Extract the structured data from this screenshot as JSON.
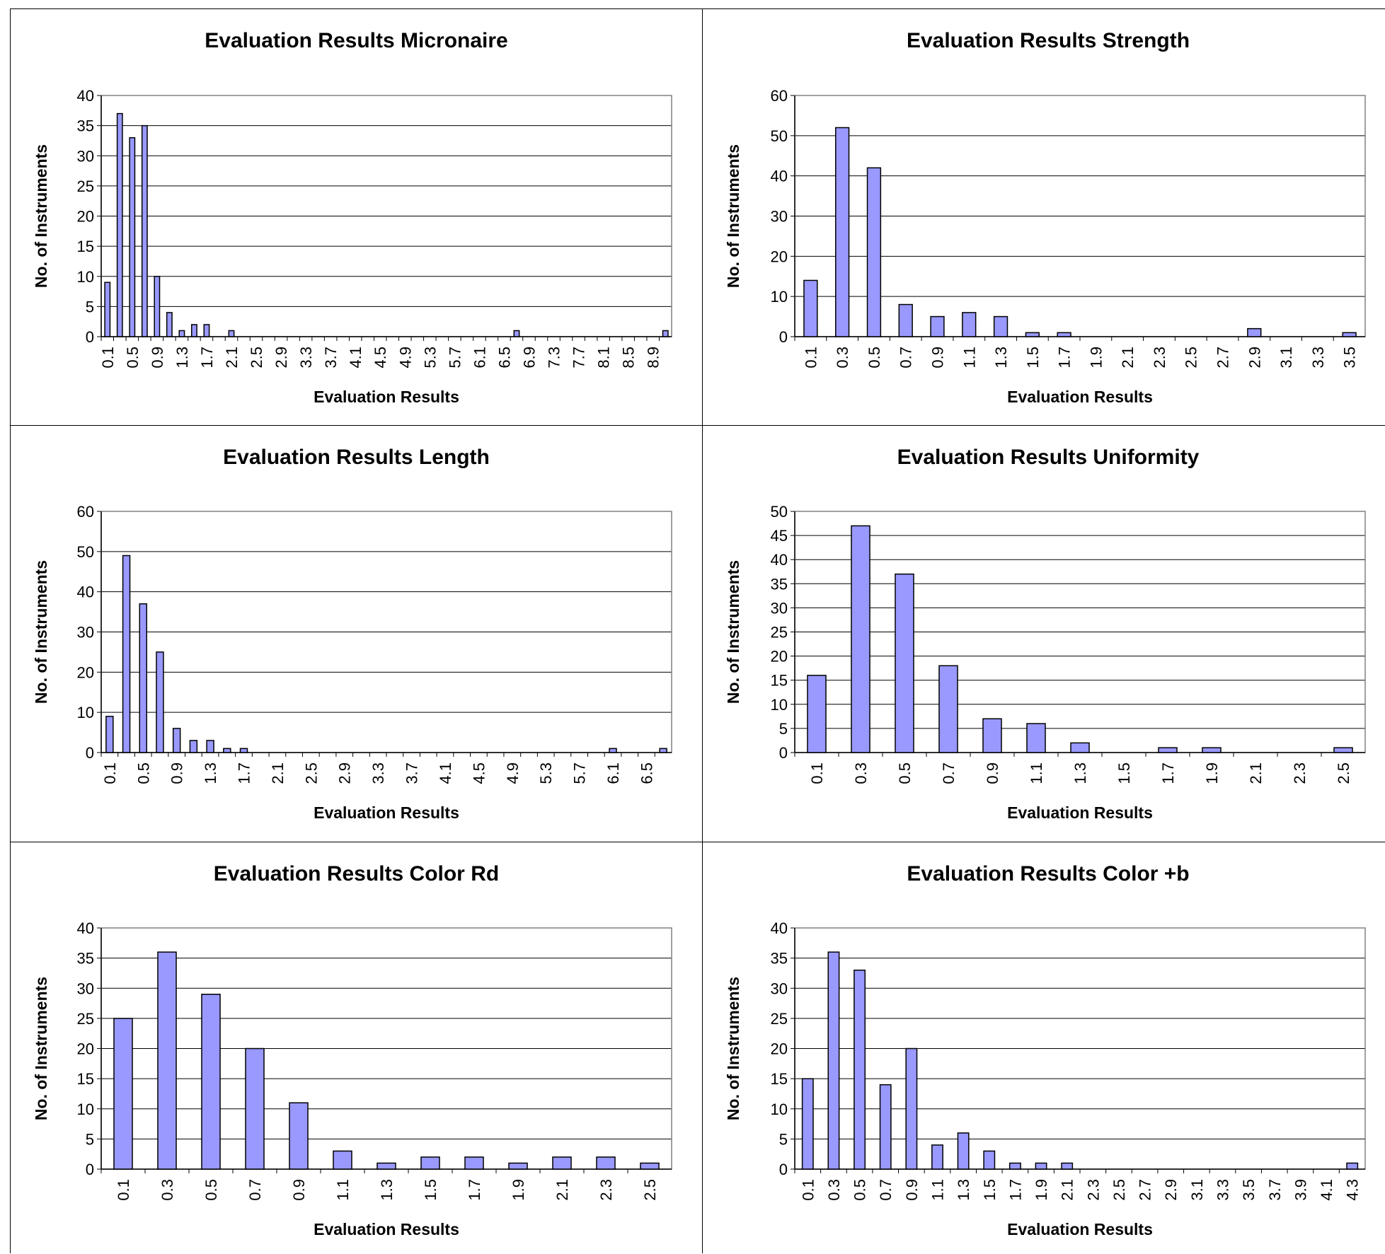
{
  "charts": [
    {
      "id": "micronaire",
      "title": "Evaluation Results Micronaire",
      "xlabel": "Evaluation Results",
      "ylabel": "No. of Instruments",
      "color": "#9999ff",
      "chart_data": {
        "type": "bar",
        "title": "Evaluation Results Micronaire",
        "xlabel": "Evaluation Results",
        "ylabel": "No. of Instruments",
        "ylim": [
          0,
          40
        ],
        "yticks": [
          0,
          5,
          10,
          15,
          20,
          25,
          30,
          35,
          40
        ],
        "x": [
          0.1,
          0.3,
          0.5,
          0.7,
          0.9,
          1.1,
          1.3,
          1.5,
          1.7,
          1.9,
          2.1,
          2.3,
          2.5,
          2.7,
          2.9,
          3.1,
          3.3,
          3.5,
          3.7,
          3.9,
          4.1,
          4.3,
          4.5,
          4.7,
          4.9,
          5.1,
          5.3,
          5.5,
          5.7,
          5.9,
          6.1,
          6.3,
          6.5,
          6.7,
          6.9,
          7.1,
          7.3,
          7.5,
          7.7,
          7.9,
          8.1,
          8.3,
          8.5,
          8.7,
          8.9,
          9.1
        ],
        "values": [
          9,
          37,
          33,
          35,
          10,
          4,
          1,
          2,
          2,
          0,
          1,
          0,
          0,
          0,
          0,
          0,
          0,
          0,
          0,
          0,
          0,
          0,
          0,
          0,
          0,
          0,
          0,
          0,
          0,
          0,
          0,
          0,
          0,
          1,
          0,
          0,
          0,
          0,
          0,
          0,
          0,
          0,
          0,
          0,
          0,
          1
        ],
        "tick_labels": [
          "0.1",
          "0.5",
          "0.9",
          "1.3",
          "1.7",
          "2.1",
          "2.5",
          "2.9",
          "3.3",
          "3.7",
          "4.1",
          "4.5",
          "4.9",
          "5.3",
          "5.7",
          "6.1",
          "6.5",
          "6.9",
          "7.3",
          "7.7",
          "8.1",
          "8.5",
          "8.9"
        ],
        "grid": true
      }
    },
    {
      "id": "strength",
      "title": "Evaluation Results Strength",
      "xlabel": "Evaluation Results",
      "ylabel": "No. of Instruments",
      "color": "#9999ff",
      "chart_data": {
        "type": "bar",
        "title": "Evaluation Results Strength",
        "xlabel": "Evaluation Results",
        "ylabel": "No. of Instruments",
        "ylim": [
          0,
          60
        ],
        "yticks": [
          0,
          10,
          20,
          30,
          40,
          50,
          60
        ],
        "x": [
          0.1,
          0.3,
          0.5,
          0.7,
          0.9,
          1.1,
          1.3,
          1.5,
          1.7,
          1.9,
          2.1,
          2.3,
          2.5,
          2.7,
          2.9,
          3.1,
          3.3,
          3.5
        ],
        "values": [
          14,
          52,
          42,
          8,
          5,
          6,
          5,
          1,
          1,
          0,
          0,
          0,
          0,
          0,
          2,
          0,
          0,
          1
        ],
        "tick_labels": [
          "0.1",
          "0.3",
          "0.5",
          "0.7",
          "0.9",
          "1.1",
          "1.3",
          "1.5",
          "1.7",
          "1.9",
          "2.1",
          "2.3",
          "2.5",
          "2.7",
          "2.9",
          "3.1",
          "3.3",
          "3.5"
        ],
        "grid": true
      }
    },
    {
      "id": "length",
      "title": "Evaluation Results Length",
      "xlabel": "Evaluation Results",
      "ylabel": "No. of Instruments",
      "color": "#9999ff",
      "chart_data": {
        "type": "bar",
        "title": "Evaluation Results Length",
        "xlabel": "Evaluation Results",
        "ylabel": "No. of Instruments",
        "ylim": [
          0,
          60
        ],
        "yticks": [
          0,
          10,
          20,
          30,
          40,
          50,
          60
        ],
        "x": [
          0.1,
          0.3,
          0.5,
          0.7,
          0.9,
          1.1,
          1.3,
          1.5,
          1.7,
          1.9,
          2.1,
          2.3,
          2.5,
          2.7,
          2.9,
          3.1,
          3.3,
          3.5,
          3.7,
          3.9,
          4.1,
          4.3,
          4.5,
          4.7,
          4.9,
          5.1,
          5.3,
          5.5,
          5.7,
          5.9,
          6.1,
          6.3,
          6.5,
          6.7
        ],
        "values": [
          9,
          49,
          37,
          25,
          6,
          3,
          3,
          1,
          1,
          0,
          0,
          0,
          0,
          0,
          0,
          0,
          0,
          0,
          0,
          0,
          0,
          0,
          0,
          0,
          0,
          0,
          0,
          0,
          0,
          0,
          1,
          0,
          0,
          1
        ],
        "tick_labels": [
          "0.1",
          "0.5",
          "0.9",
          "1.3",
          "1.7",
          "2.1",
          "2.5",
          "2.9",
          "3.3",
          "3.7",
          "4.1",
          "4.5",
          "4.9",
          "5.3",
          "5.7",
          "6.1",
          "6.5"
        ],
        "grid": true
      }
    },
    {
      "id": "uniformity",
      "title": "Evaluation Results Uniformity",
      "xlabel": "Evaluation Results",
      "ylabel": "No. of Instruments",
      "color": "#9999ff",
      "chart_data": {
        "type": "bar",
        "title": "Evaluation Results Uniformity",
        "xlabel": "Evaluation Results",
        "ylabel": "No. of Instruments",
        "ylim": [
          0,
          50
        ],
        "yticks": [
          0,
          5,
          10,
          15,
          20,
          25,
          30,
          35,
          40,
          45,
          50
        ],
        "x": [
          0.1,
          0.3,
          0.5,
          0.7,
          0.9,
          1.1,
          1.3,
          1.5,
          1.7,
          1.9,
          2.1,
          2.3,
          2.5
        ],
        "values": [
          16,
          47,
          37,
          18,
          7,
          6,
          2,
          0,
          1,
          1,
          0,
          0,
          1
        ],
        "tick_labels": [
          "0.1",
          "0.3",
          "0.5",
          "0.7",
          "0.9",
          "1.1",
          "1.3",
          "1.5",
          "1.7",
          "1.9",
          "2.1",
          "2.3",
          "2.5"
        ],
        "grid": true
      }
    },
    {
      "id": "color-rd",
      "title": "Evaluation Results Color Rd",
      "xlabel": "Evaluation Results",
      "ylabel": "No. of Instruments",
      "color": "#9999ff",
      "chart_data": {
        "type": "bar",
        "title": "Evaluation Results Color Rd",
        "xlabel": "Evaluation Results",
        "ylabel": "No. of Instruments",
        "ylim": [
          0,
          40
        ],
        "yticks": [
          0,
          5,
          10,
          15,
          20,
          25,
          30,
          35,
          40
        ],
        "x": [
          0.1,
          0.3,
          0.5,
          0.7,
          0.9,
          1.1,
          1.3,
          1.5,
          1.7,
          1.9,
          2.1,
          2.3,
          2.5
        ],
        "values": [
          25,
          36,
          29,
          20,
          11,
          3,
          1,
          2,
          2,
          1,
          2,
          2,
          1
        ],
        "tick_labels": [
          "0.1",
          "0.3",
          "0.5",
          "0.7",
          "0.9",
          "1.1",
          "1.3",
          "1.5",
          "1.7",
          "1.9",
          "2.1",
          "2.3",
          "2.5"
        ],
        "grid": true
      }
    },
    {
      "id": "color-b",
      "title": "Evaluation Results Color +b",
      "xlabel": "Evaluation Results",
      "ylabel": "No. of Instruments",
      "color": "#9999ff",
      "chart_data": {
        "type": "bar",
        "title": "Evaluation Results Color +b",
        "xlabel": "Evaluation Results",
        "ylabel": "No. of Instruments",
        "ylim": [
          0,
          40
        ],
        "yticks": [
          0,
          5,
          10,
          15,
          20,
          25,
          30,
          35,
          40
        ],
        "x": [
          0.1,
          0.3,
          0.5,
          0.7,
          0.9,
          1.1,
          1.3,
          1.5,
          1.7,
          1.9,
          2.1,
          2.3,
          2.5,
          2.7,
          2.9,
          3.1,
          3.3,
          3.5,
          3.7,
          3.9,
          4.1,
          4.3
        ],
        "values": [
          15,
          36,
          33,
          14,
          20,
          4,
          6,
          3,
          1,
          1,
          1,
          0,
          0,
          0,
          0,
          0,
          0,
          0,
          0,
          0,
          0,
          1
        ],
        "tick_labels": [
          "0.1",
          "0.3",
          "0.5",
          "0.7",
          "0.9",
          "1.1",
          "1.3",
          "1.5",
          "1.7",
          "1.9",
          "2.1",
          "2.3",
          "2.5",
          "2.7",
          "2.9",
          "3.1",
          "3.3",
          "3.5",
          "3.7",
          "3.9",
          "4.1",
          "4.3"
        ],
        "grid": true
      }
    }
  ]
}
